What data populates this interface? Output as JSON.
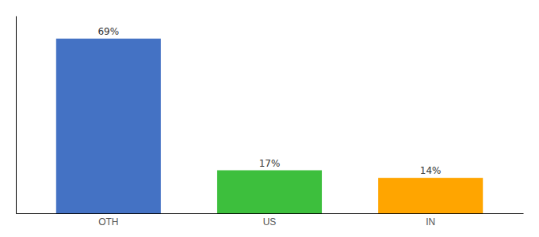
{
  "chart_data": {
    "type": "bar",
    "categories": [
      "OTH",
      "US",
      "IN"
    ],
    "values": [
      69,
      17,
      14
    ],
    "value_labels": [
      "69%",
      "17%",
      "14%"
    ],
    "colors": [
      "#4472C4",
      "#3DBF3D",
      "#FFA500"
    ],
    "ylim": [
      0,
      78
    ],
    "data_labels": true,
    "tick_labels": "x",
    "grid": false
  }
}
